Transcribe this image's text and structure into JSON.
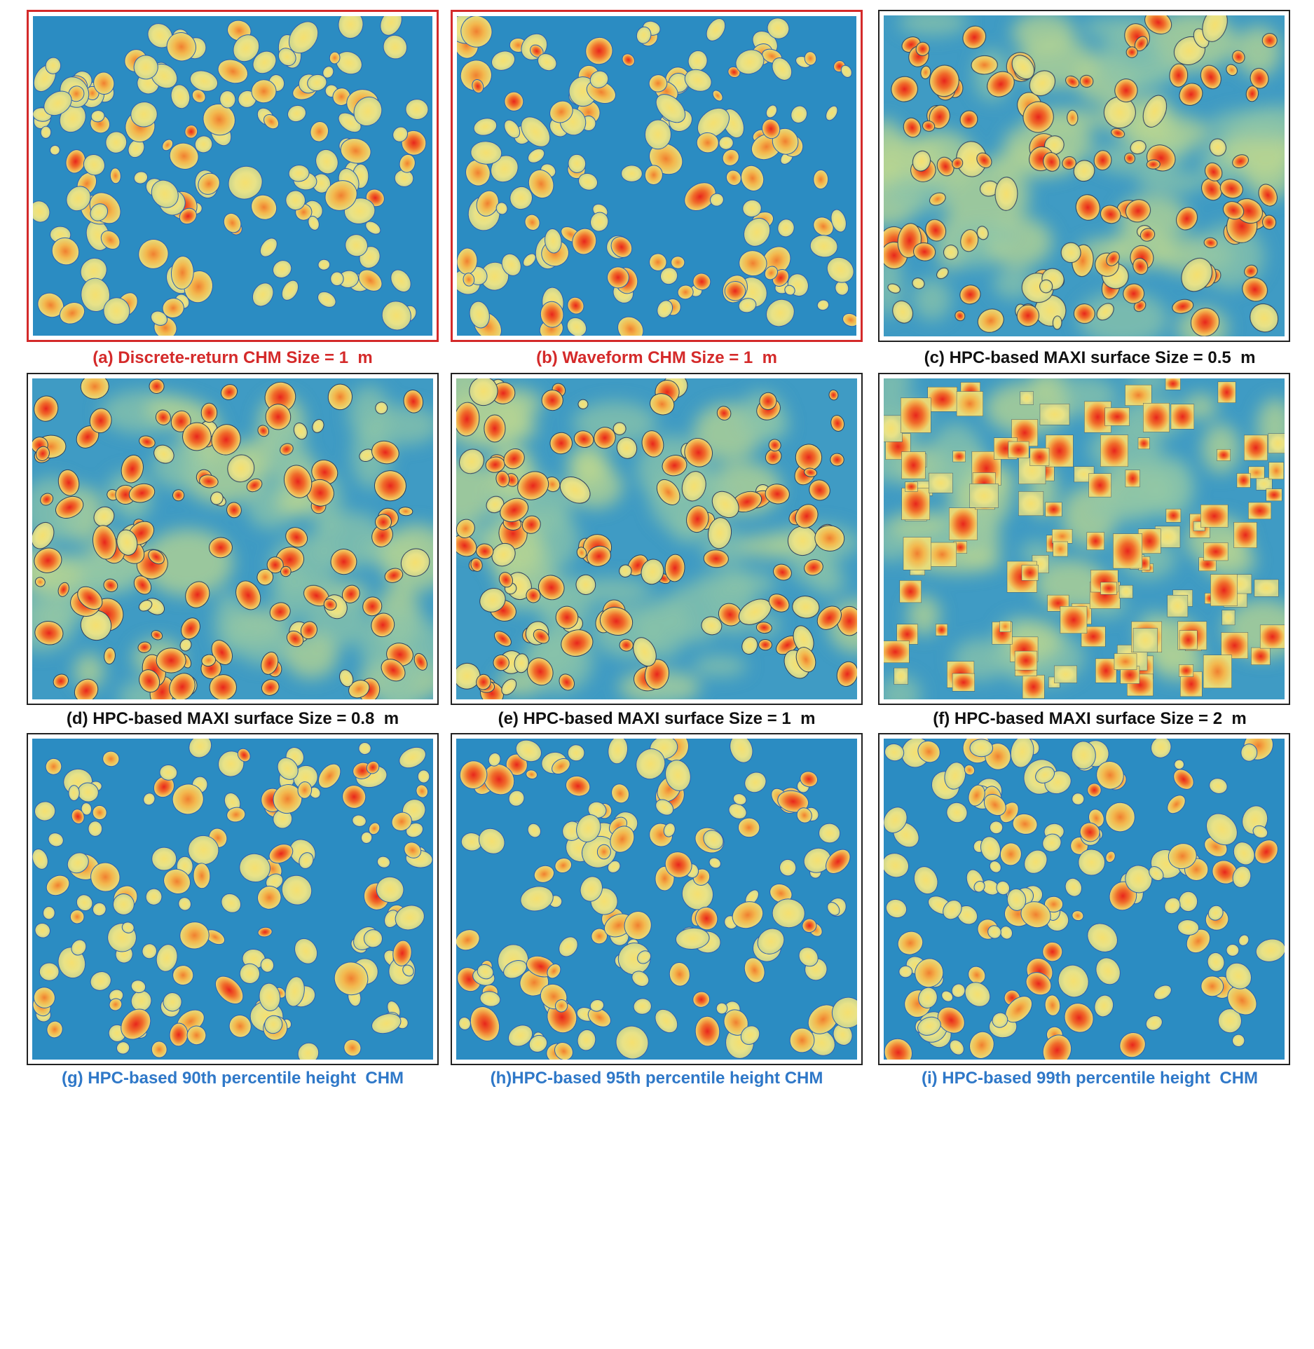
{
  "panels": [
    {
      "caption": "(a) Discrete-return CHM Size = 1  m"
    },
    {
      "caption": "(b) Waveform CHM Size = 1  m"
    },
    {
      "caption": "(c) HPC-based MAXI surface Size = 0.5  m"
    },
    {
      "caption": "(d) HPC-based MAXI surface Size = 0.8  m"
    },
    {
      "caption": "(e) HPC-based MAXI surface Size = 1  m"
    },
    {
      "caption": "(f) HPC-based MAXI surface Size = 2  m"
    },
    {
      "caption": "(g) HPC-based 90th percentile height  CHM"
    },
    {
      "caption": "(h)HPC-based 95th percentile height CHM"
    },
    {
      "caption": "(i) HPC-based 99th percentile height  CHM"
    }
  ]
}
